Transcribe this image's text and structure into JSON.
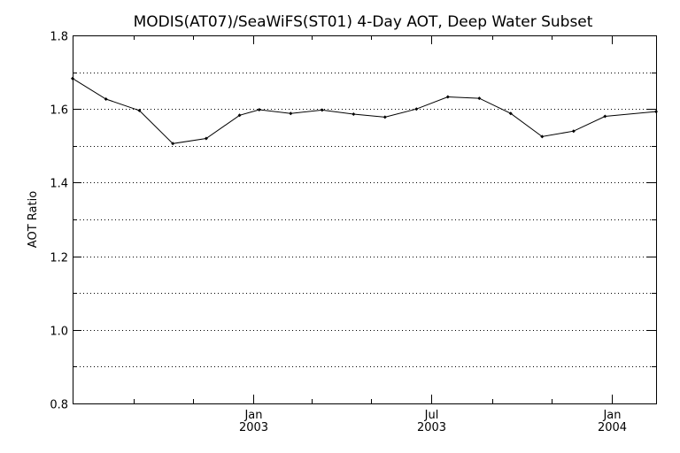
{
  "chart_data": {
    "type": "line",
    "title": "MODIS(AT07)/SeaWiFS(ST01) 4-Day AOT, Deep Water Subset",
    "xlabel": "",
    "ylabel": "AOT Ratio",
    "ylim": [
      0.8,
      1.8
    ],
    "xlim": [
      "2002-07-01",
      "2004-02-15"
    ],
    "yticks": [
      "0.8",
      "1.0",
      "1.2",
      "1.4",
      "1.6",
      "1.8"
    ],
    "ygrid": [
      0.9,
      1.0,
      1.1,
      1.2,
      1.3,
      1.4,
      1.5,
      1.6,
      1.7,
      1.8
    ],
    "xticks": [
      {
        "date": "2003-01-01",
        "label": "Jan",
        "year": "2003"
      },
      {
        "date": "2003-07-01",
        "label": "Jul",
        "year": "2003"
      },
      {
        "date": "2004-01-01",
        "label": "Jan",
        "year": "2004"
      }
    ],
    "xminor": [
      "2002-09-01",
      "2002-11-01",
      "2003-03-01",
      "2003-05-01",
      "2003-09-01",
      "2003-11-01"
    ],
    "grid": "horizontal dotted",
    "series": [
      {
        "x": [
          "2002-07-01",
          "2002-08-04",
          "2002-09-07",
          "2002-10-11",
          "2002-11-14",
          "2002-12-18",
          "2003-01-07",
          "2003-02-08",
          "2003-03-12",
          "2003-04-13",
          "2003-05-15",
          "2003-06-16",
          "2003-07-18",
          "2003-08-19",
          "2003-09-20",
          "2003-10-22",
          "2003-11-23",
          "2003-12-25",
          "2004-02-15"
        ],
        "values": [
          1.683,
          1.627,
          1.596,
          1.506,
          1.52,
          1.583,
          1.598,
          1.588,
          1.597,
          1.586,
          1.578,
          1.6,
          1.633,
          1.629,
          1.588,
          1.525,
          1.54,
          1.58,
          1.593
        ]
      }
    ]
  }
}
